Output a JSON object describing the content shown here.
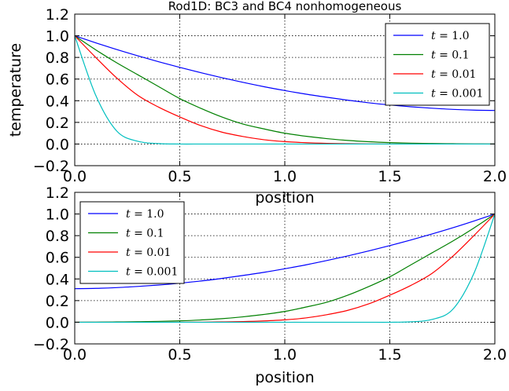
{
  "chart_data": [
    {
      "type": "line",
      "title": "Rod1D: BC3 and BC4 nonhomogeneous",
      "xlabel": "position",
      "ylabel": "temperature",
      "xlim": [
        0.0,
        2.0
      ],
      "ylim": [
        -0.2,
        1.2
      ],
      "xticks": [
        "0.0",
        "0.5",
        "1.0",
        "1.5",
        "2.0"
      ],
      "yticks": [
        "−0.2",
        "0.0",
        "0.2",
        "0.4",
        "0.6",
        "0.8",
        "1.0",
        "1.2"
      ],
      "grid": true,
      "legend_position": "top-right",
      "x": [
        0.0,
        0.1,
        0.2,
        0.3,
        0.4,
        0.5,
        0.6,
        0.7,
        0.8,
        0.9,
        1.0,
        1.1,
        1.2,
        1.3,
        1.4,
        1.5,
        1.6,
        1.7,
        1.8,
        1.9,
        2.0
      ],
      "series": [
        {
          "name": "t = 1.0",
          "color": "#0000ff",
          "values": [
            1.0,
            0.935,
            0.873,
            0.815,
            0.76,
            0.708,
            0.659,
            0.613,
            0.57,
            0.53,
            0.494,
            0.461,
            0.432,
            0.405,
            0.381,
            0.361,
            0.344,
            0.331,
            0.32,
            0.313,
            0.31
          ]
        },
        {
          "name": "t = 0.1",
          "color": "#008000",
          "values": [
            1.0,
            0.87,
            0.75,
            0.64,
            0.53,
            0.42,
            0.33,
            0.25,
            0.185,
            0.14,
            0.1,
            0.072,
            0.05,
            0.033,
            0.021,
            0.013,
            0.008,
            0.005,
            0.003,
            0.001,
            0.0
          ]
        },
        {
          "name": "t = 0.01",
          "color": "#ff0000",
          "values": [
            1.0,
            0.8,
            0.61,
            0.45,
            0.34,
            0.25,
            0.17,
            0.11,
            0.07,
            0.04,
            0.022,
            0.012,
            0.006,
            0.003,
            0.001,
            0.0,
            0.0,
            0.0,
            0.0,
            0.0,
            0.0
          ]
        },
        {
          "name": "t = 0.001",
          "color": "#00bfbf",
          "values": [
            1.0,
            0.45,
            0.12,
            0.025,
            0.004,
            0.0,
            0.0,
            0.0,
            0.0,
            0.0,
            0.0,
            0.0,
            0.0,
            0.0,
            0.0,
            0.0,
            0.0,
            0.0,
            0.0,
            0.0,
            0.0
          ]
        }
      ]
    },
    {
      "type": "line",
      "title": "",
      "xlabel": "position",
      "ylabel": "",
      "xlim": [
        0.0,
        2.0
      ],
      "ylim": [
        -0.2,
        1.2
      ],
      "xticks": [
        "0.0",
        "0.5",
        "1.0",
        "1.5",
        "2.0"
      ],
      "yticks": [
        "−0.2",
        "0.0",
        "0.2",
        "0.4",
        "0.6",
        "0.8",
        "1.0",
        "1.2"
      ],
      "grid": true,
      "legend_position": "top-left",
      "x": [
        0.0,
        0.1,
        0.2,
        0.3,
        0.4,
        0.5,
        0.6,
        0.7,
        0.8,
        0.9,
        1.0,
        1.1,
        1.2,
        1.3,
        1.4,
        1.5,
        1.6,
        1.7,
        1.8,
        1.9,
        2.0
      ],
      "series": [
        {
          "name": "t = 1.0",
          "color": "#0000ff",
          "values": [
            0.31,
            0.313,
            0.32,
            0.331,
            0.344,
            0.361,
            0.381,
            0.405,
            0.432,
            0.461,
            0.494,
            0.53,
            0.57,
            0.613,
            0.659,
            0.708,
            0.76,
            0.815,
            0.873,
            0.935,
            1.0
          ]
        },
        {
          "name": "t = 0.1",
          "color": "#008000",
          "values": [
            0.0,
            0.001,
            0.003,
            0.005,
            0.008,
            0.013,
            0.021,
            0.033,
            0.05,
            0.072,
            0.1,
            0.14,
            0.185,
            0.25,
            0.33,
            0.42,
            0.53,
            0.64,
            0.75,
            0.87,
            1.0
          ]
        },
        {
          "name": "t = 0.01",
          "color": "#ff0000",
          "values": [
            0.0,
            0.0,
            0.0,
            0.0,
            0.0,
            0.0,
            0.001,
            0.003,
            0.006,
            0.012,
            0.022,
            0.04,
            0.07,
            0.11,
            0.17,
            0.25,
            0.34,
            0.45,
            0.61,
            0.8,
            1.0
          ]
        },
        {
          "name": "t = 0.001",
          "color": "#00bfbf",
          "values": [
            0.0,
            0.0,
            0.0,
            0.0,
            0.0,
            0.0,
            0.0,
            0.0,
            0.0,
            0.0,
            0.0,
            0.0,
            0.0,
            0.0,
            0.0,
            0.0,
            0.004,
            0.025,
            0.12,
            0.45,
            1.0
          ]
        }
      ]
    }
  ]
}
